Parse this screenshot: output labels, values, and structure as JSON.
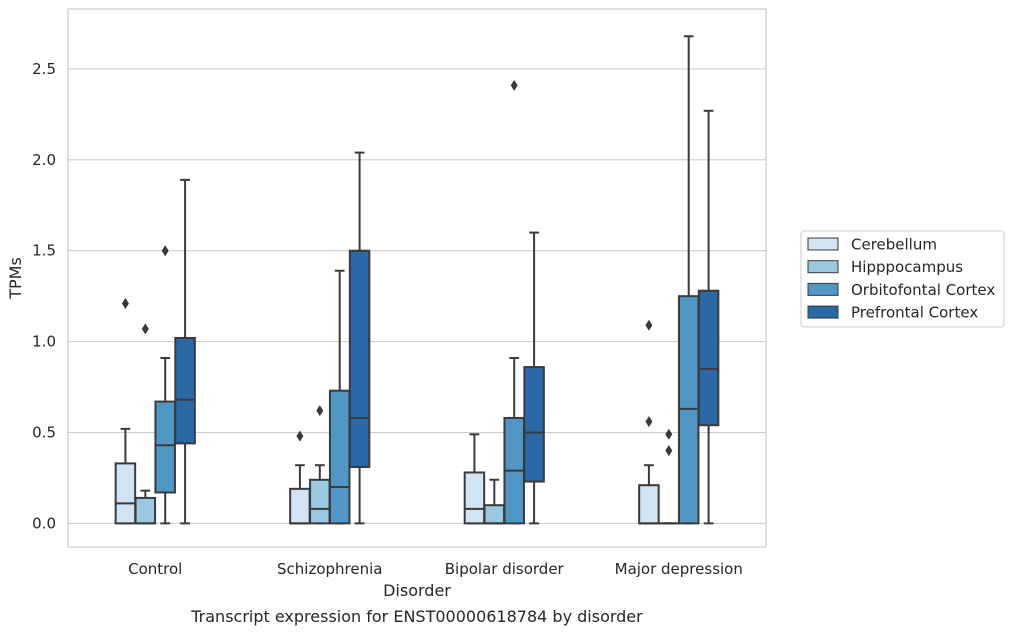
{
  "chart_data": {
    "type": "box",
    "title": "",
    "caption": "Transcript expression for ENST00000618784 by disorder",
    "xlabel": "Disorder",
    "ylabel": "TPMs",
    "ylim": [
      -0.13,
      2.83
    ],
    "yticks": [
      0.0,
      0.5,
      1.0,
      1.5,
      2.0,
      2.5
    ],
    "ytick_labels": [
      "0.0",
      "0.5",
      "1.0",
      "1.5",
      "2.0",
      "2.5"
    ],
    "grid": "horizontal",
    "legend_position": "right",
    "categories": [
      "Control",
      "Schizophrenia",
      "Bipolar disorder",
      "Major depression"
    ],
    "series": [
      {
        "name": "Cerebellum",
        "color": "#d2e3f3",
        "boxes": [
          {
            "min": 0.0,
            "q1": 0.0,
            "median": 0.11,
            "q3": 0.33,
            "max": 0.52,
            "outliers": [
              1.21
            ]
          },
          {
            "min": 0.0,
            "q1": 0.0,
            "median": 0.0,
            "q3": 0.19,
            "max": 0.32,
            "outliers": [
              0.48
            ]
          },
          {
            "min": 0.0,
            "q1": 0.0,
            "median": 0.08,
            "q3": 0.28,
            "max": 0.49,
            "outliers": []
          },
          {
            "min": 0.0,
            "q1": 0.0,
            "median": 0.0,
            "q3": 0.21,
            "max": 0.32,
            "outliers": [
              0.56,
              1.09
            ]
          }
        ]
      },
      {
        "name": "Hipppocampus",
        "color": "#9ac8e0",
        "boxes": [
          {
            "min": 0.0,
            "q1": 0.0,
            "median": 0.0,
            "q3": 0.14,
            "max": 0.18,
            "outliers": [
              1.07
            ]
          },
          {
            "min": 0.0,
            "q1": 0.0,
            "median": 0.08,
            "q3": 0.24,
            "max": 0.32,
            "outliers": [
              0.62
            ]
          },
          {
            "min": 0.0,
            "q1": 0.0,
            "median": 0.0,
            "q3": 0.1,
            "max": 0.24,
            "outliers": []
          },
          {
            "min": 0.0,
            "q1": 0.0,
            "median": 0.0,
            "q3": 0.0,
            "max": 0.0,
            "outliers": [
              0.4,
              0.49
            ]
          }
        ]
      },
      {
        "name": "Orbitofontal Cortex",
        "color": "#5097c6",
        "boxes": [
          {
            "min": 0.0,
            "q1": 0.17,
            "median": 0.43,
            "q3": 0.67,
            "max": 0.91,
            "outliers": [
              1.5
            ]
          },
          {
            "min": 0.0,
            "q1": 0.0,
            "median": 0.2,
            "q3": 0.73,
            "max": 1.39,
            "outliers": []
          },
          {
            "min": 0.0,
            "q1": 0.0,
            "median": 0.29,
            "q3": 0.58,
            "max": 0.91,
            "outliers": [
              2.41
            ]
          },
          {
            "min": 0.0,
            "q1": 0.0,
            "median": 0.63,
            "q3": 1.25,
            "max": 2.68,
            "outliers": []
          }
        ]
      },
      {
        "name": "Prefrontal Cortex",
        "color": "#2a69a8",
        "boxes": [
          {
            "min": 0.0,
            "q1": 0.44,
            "median": 0.68,
            "q3": 1.02,
            "max": 1.89,
            "outliers": []
          },
          {
            "min": 0.0,
            "q1": 0.31,
            "median": 0.58,
            "q3": 1.5,
            "max": 2.04,
            "outliers": []
          },
          {
            "min": 0.0,
            "q1": 0.23,
            "median": 0.5,
            "q3": 0.86,
            "max": 1.6,
            "outliers": []
          },
          {
            "min": 0.0,
            "q1": 0.54,
            "median": 0.85,
            "q3": 1.28,
            "max": 2.27,
            "outliers": []
          }
        ]
      }
    ]
  }
}
